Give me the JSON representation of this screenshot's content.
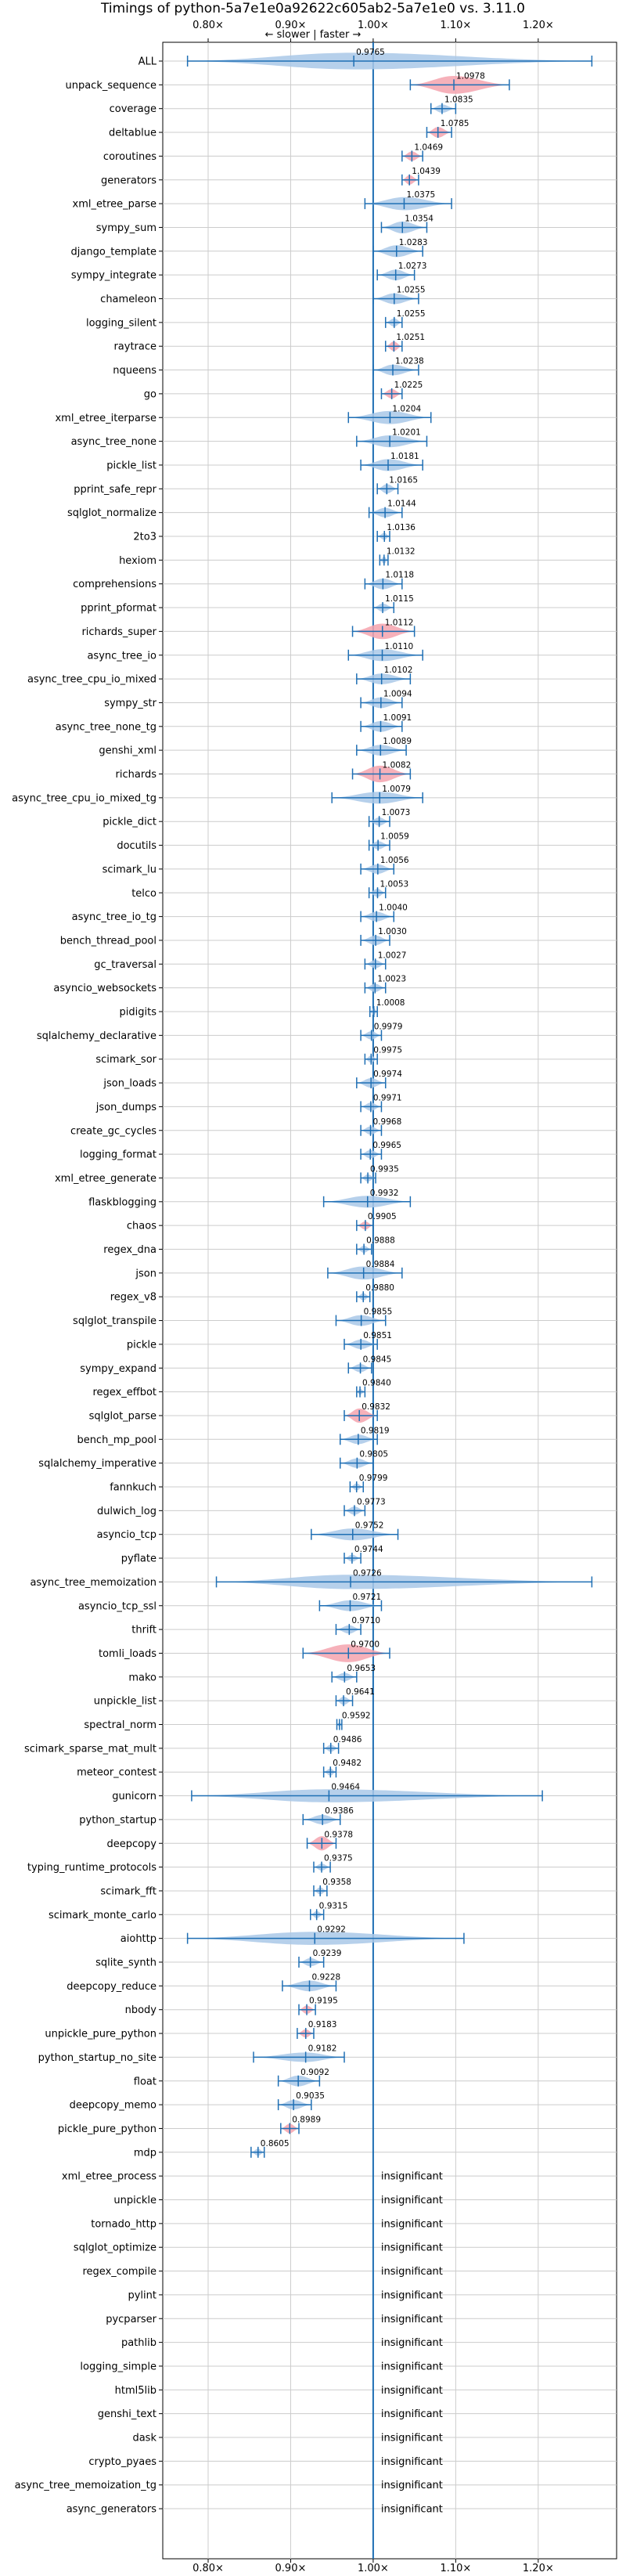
{
  "chart_data": {
    "type": "violin",
    "title": "Timings of python-5a7e1e0a92622c605ab2-5a7e1e0 vs. 3.11.0",
    "subtitle": "← slower | faster →",
    "xlim": [
      0.745,
      1.295
    ],
    "x_ticks": [
      0.8,
      0.9,
      1.0,
      1.1,
      1.2
    ],
    "x_tick_labels": [
      "0.80×",
      "0.90×",
      "1.00×",
      "1.10×",
      "1.20×"
    ],
    "reference_line": 1.0,
    "grid": true,
    "colors": {
      "violin_fill": "#a9c8e8",
      "violin_fill_slower": "#f4a3ae",
      "whisker": "#1f6fb4",
      "reference_line": "#1f6fb4",
      "grid": "#cccccc"
    },
    "insignificant_label": "insignificant",
    "benchmarks": [
      {
        "name": "ALL",
        "median": 0.9765,
        "label": "0.9765",
        "min": 0.775,
        "max": 1.265,
        "width": 0.7,
        "slower": false
      },
      {
        "name": "unpack_sequence",
        "median": 1.0978,
        "label": "1.0978",
        "min": 1.045,
        "max": 1.165,
        "width": 0.75,
        "slower": true
      },
      {
        "name": "coverage",
        "median": 1.0835,
        "label": "1.0835",
        "min": 1.07,
        "max": 1.1,
        "width": 0.35,
        "slower": false
      },
      {
        "name": "deltablue",
        "median": 1.0785,
        "label": "1.0785",
        "min": 1.065,
        "max": 1.095,
        "width": 0.45,
        "slower": true
      },
      {
        "name": "coroutines",
        "median": 1.0469,
        "label": "1.0469",
        "min": 1.035,
        "max": 1.06,
        "width": 0.4,
        "slower": true
      },
      {
        "name": "generators",
        "median": 1.0439,
        "label": "1.0439",
        "min": 1.035,
        "max": 1.055,
        "width": 0.4,
        "slower": true
      },
      {
        "name": "xml_etree_parse",
        "median": 1.0375,
        "label": "1.0375",
        "min": 0.99,
        "max": 1.095,
        "width": 0.55,
        "slower": false
      },
      {
        "name": "sympy_sum",
        "median": 1.0354,
        "label": "1.0354",
        "min": 1.01,
        "max": 1.065,
        "width": 0.5,
        "slower": false
      },
      {
        "name": "django_template",
        "median": 1.0283,
        "label": "1.0283",
        "min": 1.0,
        "max": 1.06,
        "width": 0.5,
        "slower": false
      },
      {
        "name": "sympy_integrate",
        "median": 1.0273,
        "label": "1.0273",
        "min": 1.005,
        "max": 1.05,
        "width": 0.45,
        "slower": false
      },
      {
        "name": "chameleon",
        "median": 1.0255,
        "label": "1.0255",
        "min": 1.0,
        "max": 1.055,
        "width": 0.45,
        "slower": false
      },
      {
        "name": "logging_silent",
        "median": 1.0255,
        "label": "1.0255",
        "min": 1.015,
        "max": 1.035,
        "width": 0.35,
        "slower": false
      },
      {
        "name": "raytrace",
        "median": 1.0251,
        "label": "1.0251",
        "min": 1.015,
        "max": 1.035,
        "width": 0.4,
        "slower": true
      },
      {
        "name": "nqueens",
        "median": 1.0238,
        "label": "1.0238",
        "min": 1.0,
        "max": 1.055,
        "width": 0.45,
        "slower": false
      },
      {
        "name": "go",
        "median": 1.0225,
        "label": "1.0225",
        "min": 1.01,
        "max": 1.035,
        "width": 0.4,
        "slower": true
      },
      {
        "name": "xml_etree_iterparse",
        "median": 1.0204,
        "label": "1.0204",
        "min": 0.97,
        "max": 1.07,
        "width": 0.55,
        "slower": false
      },
      {
        "name": "async_tree_none",
        "median": 1.0201,
        "label": "1.0201",
        "min": 0.98,
        "max": 1.065,
        "width": 0.5,
        "slower": false
      },
      {
        "name": "pickle_list",
        "median": 1.0181,
        "label": "1.0181",
        "min": 0.985,
        "max": 1.06,
        "width": 0.5,
        "slower": false
      },
      {
        "name": "pprint_safe_repr",
        "median": 1.0165,
        "label": "1.0165",
        "min": 1.005,
        "max": 1.03,
        "width": 0.4,
        "slower": false
      },
      {
        "name": "sqlglot_normalize",
        "median": 1.0144,
        "label": "1.0144",
        "min": 0.995,
        "max": 1.035,
        "width": 0.4,
        "slower": false
      },
      {
        "name": "2to3",
        "median": 1.0136,
        "label": "1.0136",
        "min": 1.005,
        "max": 1.02,
        "width": 0.3,
        "slower": false
      },
      {
        "name": "hexiom",
        "median": 1.0132,
        "label": "1.0132",
        "min": 1.008,
        "max": 1.018,
        "width": 0.3,
        "slower": false
      },
      {
        "name": "comprehensions",
        "median": 1.0118,
        "label": "1.0118",
        "min": 0.99,
        "max": 1.035,
        "width": 0.45,
        "slower": false
      },
      {
        "name": "pprint_pformat",
        "median": 1.0115,
        "label": "1.0115",
        "min": 1.0,
        "max": 1.025,
        "width": 0.35,
        "slower": false
      },
      {
        "name": "richards_super",
        "median": 1.0112,
        "label": "1.0112",
        "min": 0.975,
        "max": 1.05,
        "width": 0.65,
        "slower": true
      },
      {
        "name": "async_tree_io",
        "median": 1.011,
        "label": "1.0110",
        "min": 0.97,
        "max": 1.06,
        "width": 0.5,
        "slower": false
      },
      {
        "name": "async_tree_cpu_io_mixed",
        "median": 1.0102,
        "label": "1.0102",
        "min": 0.98,
        "max": 1.045,
        "width": 0.45,
        "slower": false
      },
      {
        "name": "sympy_str",
        "median": 1.0094,
        "label": "1.0094",
        "min": 0.985,
        "max": 1.035,
        "width": 0.45,
        "slower": false
      },
      {
        "name": "async_tree_none_tg",
        "median": 1.0091,
        "label": "1.0091",
        "min": 0.985,
        "max": 1.035,
        "width": 0.45,
        "slower": false
      },
      {
        "name": "genshi_xml",
        "median": 1.0089,
        "label": "1.0089",
        "min": 0.98,
        "max": 1.04,
        "width": 0.45,
        "slower": false
      },
      {
        "name": "richards",
        "median": 1.0082,
        "label": "1.0082",
        "min": 0.975,
        "max": 1.045,
        "width": 0.7,
        "slower": true
      },
      {
        "name": "async_tree_cpu_io_mixed_tg",
        "median": 1.0079,
        "label": "1.0079",
        "min": 0.95,
        "max": 1.06,
        "width": 0.5,
        "slower": false
      },
      {
        "name": "pickle_dict",
        "median": 1.0073,
        "label": "1.0073",
        "min": 0.995,
        "max": 1.02,
        "width": 0.35,
        "slower": false
      },
      {
        "name": "docutils",
        "median": 1.0059,
        "label": "1.0059",
        "min": 0.995,
        "max": 1.02,
        "width": 0.35,
        "slower": false
      },
      {
        "name": "scimark_lu",
        "median": 1.0056,
        "label": "1.0056",
        "min": 0.985,
        "max": 1.025,
        "width": 0.4,
        "slower": false
      },
      {
        "name": "telco",
        "median": 1.0053,
        "label": "1.0053",
        "min": 0.995,
        "max": 1.015,
        "width": 0.35,
        "slower": false
      },
      {
        "name": "async_tree_io_tg",
        "median": 1.004,
        "label": "1.0040",
        "min": 0.985,
        "max": 1.025,
        "width": 0.4,
        "slower": false
      },
      {
        "name": "bench_thread_pool",
        "median": 1.003,
        "label": "1.0030",
        "min": 0.985,
        "max": 1.02,
        "width": 0.4,
        "slower": false
      },
      {
        "name": "gc_traversal",
        "median": 1.0027,
        "label": "1.0027",
        "min": 0.99,
        "max": 1.015,
        "width": 0.35,
        "slower": false
      },
      {
        "name": "asyncio_websockets",
        "median": 1.0023,
        "label": "1.0023",
        "min": 0.99,
        "max": 1.015,
        "width": 0.35,
        "slower": false
      },
      {
        "name": "pidigits",
        "median": 1.0008,
        "label": "1.0008",
        "min": 0.996,
        "max": 1.005,
        "width": 0.3,
        "slower": false
      },
      {
        "name": "sqlalchemy_declarative",
        "median": 0.9979,
        "label": "0.9979",
        "min": 0.985,
        "max": 1.01,
        "width": 0.35,
        "slower": false
      },
      {
        "name": "scimark_sor",
        "median": 0.9975,
        "label": "0.9975",
        "min": 0.99,
        "max": 1.005,
        "width": 0.3,
        "slower": false
      },
      {
        "name": "json_loads",
        "median": 0.9974,
        "label": "0.9974",
        "min": 0.98,
        "max": 1.015,
        "width": 0.4,
        "slower": false
      },
      {
        "name": "json_dumps",
        "median": 0.9971,
        "label": "0.9971",
        "min": 0.985,
        "max": 1.01,
        "width": 0.35,
        "slower": false
      },
      {
        "name": "create_gc_cycles",
        "median": 0.9968,
        "label": "0.9968",
        "min": 0.985,
        "max": 1.01,
        "width": 0.35,
        "slower": false
      },
      {
        "name": "logging_format",
        "median": 0.9965,
        "label": "0.9965",
        "min": 0.985,
        "max": 1.01,
        "width": 0.35,
        "slower": false
      },
      {
        "name": "xml_etree_generate",
        "median": 0.9935,
        "label": "0.9935",
        "min": 0.985,
        "max": 1.003,
        "width": 0.3,
        "slower": false
      },
      {
        "name": "flaskblogging",
        "median": 0.9932,
        "label": "0.9932",
        "min": 0.94,
        "max": 1.045,
        "width": 0.5,
        "slower": false
      },
      {
        "name": "chaos",
        "median": 0.9905,
        "label": "0.9905",
        "min": 0.98,
        "max": 1.0,
        "width": 0.35,
        "slower": true
      },
      {
        "name": "regex_dna",
        "median": 0.9888,
        "label": "0.9888",
        "min": 0.98,
        "max": 0.998,
        "width": 0.3,
        "slower": false
      },
      {
        "name": "json",
        "median": 0.9884,
        "label": "0.9884",
        "min": 0.945,
        "max": 1.035,
        "width": 0.55,
        "slower": false
      },
      {
        "name": "regex_v8",
        "median": 0.988,
        "label": "0.9880",
        "min": 0.98,
        "max": 0.996,
        "width": 0.3,
        "slower": false
      },
      {
        "name": "sqlglot_transpile",
        "median": 0.9855,
        "label": "0.9855",
        "min": 0.955,
        "max": 1.015,
        "width": 0.45,
        "slower": false
      },
      {
        "name": "pickle",
        "median": 0.9851,
        "label": "0.9851",
        "min": 0.965,
        "max": 1.005,
        "width": 0.4,
        "slower": false
      },
      {
        "name": "sympy_expand",
        "median": 0.9845,
        "label": "0.9845",
        "min": 0.97,
        "max": 0.998,
        "width": 0.35,
        "slower": false
      },
      {
        "name": "regex_effbot",
        "median": 0.984,
        "label": "0.9840",
        "min": 0.98,
        "max": 0.99,
        "width": 0.25,
        "slower": false
      },
      {
        "name": "sqlglot_parse",
        "median": 0.9832,
        "label": "0.9832",
        "min": 0.965,
        "max": 1.005,
        "width": 0.6,
        "slower": true
      },
      {
        "name": "bench_mp_pool",
        "median": 0.9819,
        "label": "0.9819",
        "min": 0.96,
        "max": 1.005,
        "width": 0.4,
        "slower": false
      },
      {
        "name": "sqlalchemy_imperative",
        "median": 0.9805,
        "label": "0.9805",
        "min": 0.96,
        "max": 1.0,
        "width": 0.4,
        "slower": false
      },
      {
        "name": "fannkuch",
        "median": 0.9799,
        "label": "0.9799",
        "min": 0.972,
        "max": 0.988,
        "width": 0.3,
        "slower": false
      },
      {
        "name": "dulwich_log",
        "median": 0.9773,
        "label": "0.9773",
        "min": 0.965,
        "max": 0.99,
        "width": 0.35,
        "slower": false
      },
      {
        "name": "asyncio_tcp",
        "median": 0.9752,
        "label": "0.9752",
        "min": 0.925,
        "max": 1.03,
        "width": 0.5,
        "slower": false
      },
      {
        "name": "pyflate",
        "median": 0.9744,
        "label": "0.9744",
        "min": 0.965,
        "max": 0.985,
        "width": 0.3,
        "slower": false
      },
      {
        "name": "async_tree_memoization",
        "median": 0.9726,
        "label": "0.9726",
        "min": 0.81,
        "max": 1.265,
        "width": 0.6,
        "slower": false
      },
      {
        "name": "asyncio_tcp_ssl",
        "median": 0.9721,
        "label": "0.9721",
        "min": 0.935,
        "max": 1.01,
        "width": 0.45,
        "slower": false
      },
      {
        "name": "thrift",
        "median": 0.971,
        "label": "0.9710",
        "min": 0.955,
        "max": 0.985,
        "width": 0.35,
        "slower": false
      },
      {
        "name": "tomli_loads",
        "median": 0.97,
        "label": "0.9700",
        "min": 0.915,
        "max": 1.02,
        "width": 0.75,
        "slower": true
      },
      {
        "name": "mako",
        "median": 0.9653,
        "label": "0.9653",
        "min": 0.95,
        "max": 0.98,
        "width": 0.35,
        "slower": false
      },
      {
        "name": "unpickle_list",
        "median": 0.9641,
        "label": "0.9641",
        "min": 0.955,
        "max": 0.975,
        "width": 0.35,
        "slower": false
      },
      {
        "name": "spectral_norm",
        "median": 0.9592,
        "label": "0.9592",
        "min": 0.956,
        "max": 0.962,
        "width": 0.2,
        "slower": false
      },
      {
        "name": "scimark_sparse_mat_mult",
        "median": 0.9486,
        "label": "0.9486",
        "min": 0.94,
        "max": 0.958,
        "width": 0.3,
        "slower": false
      },
      {
        "name": "meteor_contest",
        "median": 0.9482,
        "label": "0.9482",
        "min": 0.94,
        "max": 0.955,
        "width": 0.3,
        "slower": false
      },
      {
        "name": "gunicorn",
        "median": 0.9464,
        "label": "0.9464",
        "min": 0.78,
        "max": 1.205,
        "width": 0.55,
        "slower": false
      },
      {
        "name": "python_startup",
        "median": 0.9386,
        "label": "0.9386",
        "min": 0.915,
        "max": 0.96,
        "width": 0.4,
        "slower": false
      },
      {
        "name": "deepcopy",
        "median": 0.9378,
        "label": "0.9378",
        "min": 0.92,
        "max": 0.955,
        "width": 0.6,
        "slower": true
      },
      {
        "name": "typing_runtime_protocols",
        "median": 0.9375,
        "label": "0.9375",
        "min": 0.928,
        "max": 0.948,
        "width": 0.3,
        "slower": false
      },
      {
        "name": "scimark_fft",
        "median": 0.9358,
        "label": "0.9358",
        "min": 0.928,
        "max": 0.944,
        "width": 0.3,
        "slower": false
      },
      {
        "name": "scimark_monte_carlo",
        "median": 0.9315,
        "label": "0.9315",
        "min": 0.924,
        "max": 0.94,
        "width": 0.3,
        "slower": false
      },
      {
        "name": "aiohttp",
        "median": 0.9292,
        "label": "0.9292",
        "min": 0.775,
        "max": 1.11,
        "width": 0.55,
        "slower": false
      },
      {
        "name": "sqlite_synth",
        "median": 0.9239,
        "label": "0.9239",
        "min": 0.91,
        "max": 0.94,
        "width": 0.35,
        "slower": false
      },
      {
        "name": "deepcopy_reduce",
        "median": 0.9228,
        "label": "0.9228",
        "min": 0.89,
        "max": 0.955,
        "width": 0.45,
        "slower": false
      },
      {
        "name": "nbody",
        "median": 0.9195,
        "label": "0.9195",
        "min": 0.91,
        "max": 0.93,
        "width": 0.35,
        "slower": true
      },
      {
        "name": "unpickle_pure_python",
        "median": 0.9183,
        "label": "0.9183",
        "min": 0.908,
        "max": 0.928,
        "width": 0.35,
        "slower": true
      },
      {
        "name": "python_startup_no_site",
        "median": 0.9182,
        "label": "0.9182",
        "min": 0.855,
        "max": 0.965,
        "width": 0.4,
        "slower": false
      },
      {
        "name": "float",
        "median": 0.9092,
        "label": "0.9092",
        "min": 0.885,
        "max": 0.935,
        "width": 0.45,
        "slower": false
      },
      {
        "name": "deepcopy_memo",
        "median": 0.9035,
        "label": "0.9035",
        "min": 0.885,
        "max": 0.925,
        "width": 0.4,
        "slower": false
      },
      {
        "name": "pickle_pure_python",
        "median": 0.8989,
        "label": "0.8989",
        "min": 0.888,
        "max": 0.91,
        "width": 0.4,
        "slower": true
      },
      {
        "name": "mdp",
        "median": 0.8605,
        "label": "0.8605",
        "min": 0.852,
        "max": 0.868,
        "width": 0.3,
        "slower": false
      },
      {
        "name": "xml_etree_process",
        "insignificant": true
      },
      {
        "name": "unpickle",
        "insignificant": true
      },
      {
        "name": "tornado_http",
        "insignificant": true
      },
      {
        "name": "sqlglot_optimize",
        "insignificant": true
      },
      {
        "name": "regex_compile",
        "insignificant": true
      },
      {
        "name": "pylint",
        "insignificant": true
      },
      {
        "name": "pycparser",
        "insignificant": true
      },
      {
        "name": "pathlib",
        "insignificant": true
      },
      {
        "name": "logging_simple",
        "insignificant": true
      },
      {
        "name": "html5lib",
        "insignificant": true
      },
      {
        "name": "genshi_text",
        "insignificant": true
      },
      {
        "name": "dask",
        "insignificant": true
      },
      {
        "name": "crypto_pyaes",
        "insignificant": true
      },
      {
        "name": "async_tree_memoization_tg",
        "insignificant": true
      },
      {
        "name": "async_generators",
        "insignificant": true
      }
    ]
  }
}
